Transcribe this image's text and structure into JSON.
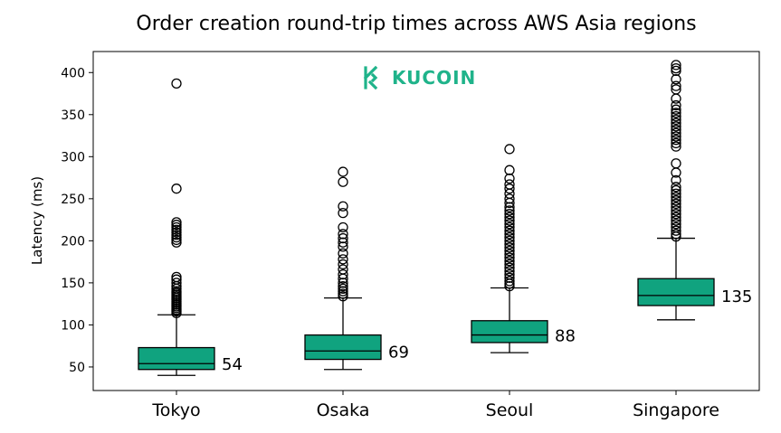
{
  "chart_data": {
    "type": "box",
    "title": "Order creation round-trip times across AWS Asia regions",
    "xlabel": "",
    "ylabel": "Latency (ms)",
    "ylim": [
      22,
      425
    ],
    "yticks": [
      50,
      100,
      150,
      200,
      250,
      300,
      350,
      400
    ],
    "categories": [
      "Tokyo",
      "Osaka",
      "Seoul",
      "Singapore"
    ],
    "box_color": "#10a37f",
    "grid": false,
    "series": [
      {
        "whisker_low": 40,
        "q1": 47,
        "median": 54,
        "q3": 73,
        "whisker_high": 112,
        "median_label": "54",
        "outliers": [
          114,
          116,
          118,
          120,
          122,
          124,
          126,
          128,
          130,
          132,
          134,
          136,
          138,
          140,
          143,
          146,
          150,
          154,
          157,
          198,
          201,
          204,
          207,
          210,
          213,
          216,
          219,
          222,
          262,
          387
        ]
      },
      {
        "whisker_low": 47,
        "q1": 59,
        "median": 69,
        "q3": 88,
        "whisker_high": 132,
        "median_label": "69",
        "outliers": [
          134,
          137,
          140,
          143,
          146,
          150,
          155,
          160,
          166,
          172,
          178,
          185,
          193,
          198,
          203,
          208,
          216,
          233,
          241,
          270,
          282
        ]
      },
      {
        "whisker_low": 67,
        "q1": 79,
        "median": 88,
        "q3": 105,
        "whisker_high": 144,
        "median_label": "88",
        "outliers": [
          146,
          149,
          152,
          156,
          160,
          164,
          168,
          172,
          176,
          180,
          184,
          188,
          192,
          196,
          200,
          204,
          208,
          212,
          216,
          220,
          224,
          228,
          232,
          236,
          240,
          245,
          250,
          256,
          262,
          267,
          274,
          284,
          309
        ]
      },
      {
        "whisker_low": 106,
        "q1": 123,
        "median": 135,
        "q3": 155,
        "whisker_high": 203,
        "median_label": "135",
        "outliers": [
          205,
          208,
          212,
          216,
          220,
          224,
          228,
          232,
          236,
          240,
          244,
          248,
          252,
          256,
          260,
          264,
          272,
          281,
          292,
          312,
          316,
          320,
          324,
          328,
          332,
          336,
          340,
          344,
          348,
          352,
          356,
          361,
          369,
          380,
          384,
          392,
          402,
          405,
          409
        ]
      }
    ]
  },
  "logo": {
    "text": "KUCOIN",
    "color": "#1fb38a",
    "icon": "kucoin-logo-icon"
  }
}
